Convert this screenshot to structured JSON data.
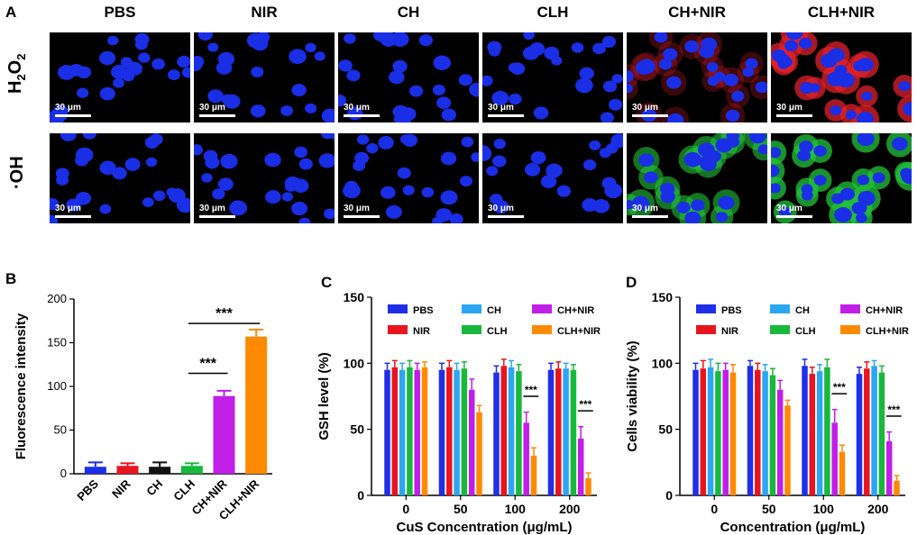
{
  "panel_a": {
    "letter": "A",
    "columns": [
      "PBS",
      "NIR",
      "CH",
      "CLH",
      "CH+NIR",
      "CLH+NIR"
    ],
    "rows": [
      "H2O2",
      "·OH"
    ],
    "scale_bar": "30 μm",
    "colors": {
      "nucleus": "#1a2ee6",
      "h2o2_stain": "#e0202a",
      "oh_stain": "#22c43a"
    }
  },
  "panel_b": {
    "letter": "B"
  },
  "panel_c": {
    "letter": "C"
  },
  "panel_d": {
    "letter": "D"
  },
  "chart_data": [
    {
      "id": "B",
      "type": "bar",
      "categories": [
        "PBS",
        "NIR",
        "CH",
        "CLH",
        "CH+NIR",
        "CLH+NIR"
      ],
      "values": [
        8,
        9,
        8,
        9,
        89,
        157
      ],
      "errors": [
        5,
        3,
        5,
        3,
        6,
        8
      ],
      "colors": [
        "#1f2ee8",
        "#e8141e",
        "#111111",
        "#18b83c",
        "#c11ee8",
        "#ff8a00"
      ],
      "ylabel": "Fluorescence intensity",
      "ylim": [
        0,
        200
      ],
      "yticks": [
        0,
        50,
        100,
        150,
        200
      ],
      "significance": [
        {
          "from": "CLH",
          "to": "CH+NIR",
          "label": "***"
        },
        {
          "from": "CLH",
          "to": "CLH+NIR",
          "label": "***"
        }
      ]
    },
    {
      "id": "C",
      "type": "bar",
      "categories": [
        "0",
        "50",
        "100",
        "200"
      ],
      "series": [
        {
          "name": "PBS",
          "color": "#1f2ee8",
          "values": [
            95,
            95,
            93,
            95
          ],
          "errors": [
            5,
            5,
            5,
            5
          ]
        },
        {
          "name": "NIR",
          "color": "#e8141e",
          "values": [
            97,
            97,
            98,
            96
          ],
          "errors": [
            5,
            5,
            5,
            5
          ]
        },
        {
          "name": "CH",
          "color": "#2ba6f0",
          "values": [
            95,
            95,
            97,
            96
          ],
          "errors": [
            5,
            5,
            5,
            4
          ]
        },
        {
          "name": "CLH",
          "color": "#18b83c",
          "values": [
            97,
            96,
            94,
            95
          ],
          "errors": [
            5,
            5,
            5,
            4
          ]
        },
        {
          "name": "CH+NIR",
          "color": "#c11ee8",
          "values": [
            95,
            80,
            55,
            43
          ],
          "errors": [
            5,
            8,
            8,
            9
          ]
        },
        {
          "name": "CLH+NIR",
          "color": "#ff8a00",
          "values": [
            97,
            63,
            30,
            13
          ],
          "errors": [
            4,
            5,
            6,
            4
          ]
        }
      ],
      "xlabel": "CuS Concentration (μg/mL)",
      "ylabel": "GSH level (%)",
      "ylim": [
        0,
        150
      ],
      "yticks": [
        "0",
        "50",
        "100",
        "150"
      ],
      "significance_label": "***"
    },
    {
      "id": "D",
      "type": "bar",
      "categories": [
        "0",
        "50",
        "100",
        "200"
      ],
      "series": [
        {
          "name": "PBS",
          "color": "#1f2ee8",
          "values": [
            95,
            98,
            98,
            92
          ],
          "errors": [
            5,
            4,
            5,
            5
          ]
        },
        {
          "name": "NIR",
          "color": "#e8141e",
          "values": [
            96,
            95,
            92,
            96
          ],
          "errors": [
            6,
            5,
            5,
            5
          ]
        },
        {
          "name": "CH",
          "color": "#2ba6f0",
          "values": [
            97,
            94,
            94,
            98
          ],
          "errors": [
            6,
            5,
            5,
            4
          ]
        },
        {
          "name": "CLH",
          "color": "#18b83c",
          "values": [
            94,
            91,
            97,
            93
          ],
          "errors": [
            6,
            5,
            6,
            5
          ]
        },
        {
          "name": "CH+NIR",
          "color": "#c11ee8",
          "values": [
            95,
            80,
            55,
            41
          ],
          "errors": [
            5,
            7,
            10,
            7
          ]
        },
        {
          "name": "CLH+NIR",
          "color": "#ff8a00",
          "values": [
            93,
            68,
            33,
            11
          ],
          "errors": [
            6,
            4,
            5,
            4
          ]
        }
      ],
      "xlabel": "Concentration (μg/mL)",
      "ylabel": "Cells viability (%)",
      "ylim": [
        0,
        150
      ],
      "yticks": [
        "0",
        "50",
        "100",
        "150"
      ],
      "significance_label": "***"
    }
  ]
}
